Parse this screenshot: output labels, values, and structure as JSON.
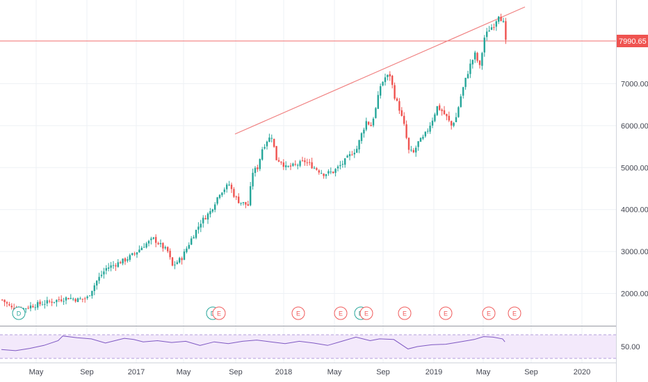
{
  "colors": {
    "up": "#26a69a",
    "down": "#ef5350",
    "hline": "#f26d6d",
    "trend": "#f08080",
    "rsi": "#7e57c2",
    "rsi_band": "#f3e9fb",
    "grid": "#eef1f5",
    "div_e": "#f05a5a",
    "div_d": "#26a69a"
  },
  "price_axis": {
    "ticks": [
      "2000.00",
      "3000.00",
      "4000.00",
      "5000.00",
      "6000.00",
      "7000.00"
    ],
    "current_price": "7990.65"
  },
  "time_axis": {
    "labels": [
      "May",
      "Sep",
      "2017",
      "May",
      "Sep",
      "2018",
      "May",
      "Sep",
      "2019",
      "May",
      "Sep",
      "2020"
    ]
  },
  "rsi": {
    "level_label": "50.00"
  },
  "events": [
    {
      "type": "D"
    },
    {
      "type": "D"
    },
    {
      "type": "E"
    },
    {
      "type": "E"
    },
    {
      "type": "E"
    },
    {
      "type": "D"
    },
    {
      "type": "E"
    },
    {
      "type": "E"
    },
    {
      "type": "E"
    },
    {
      "type": "E"
    },
    {
      "type": "E"
    }
  ],
  "chart_data": {
    "type": "candlestick",
    "price_range": [
      1200,
      8800
    ],
    "horizontal_line": 7990,
    "trendline": [
      {
        "date": "2017-09",
        "price": 5800
      },
      {
        "date": "2019-07",
        "price": 8750
      }
    ],
    "close_path": [
      [
        0,
        1850
      ],
      [
        4,
        1650
      ],
      [
        8,
        1620
      ],
      [
        12,
        1700
      ],
      [
        16,
        1750
      ],
      [
        20,
        1800
      ],
      [
        24,
        1850
      ],
      [
        28,
        1900
      ],
      [
        32,
        1850
      ],
      [
        36,
        1900
      ],
      [
        40,
        2300
      ],
      [
        44,
        2600
      ],
      [
        48,
        2700
      ],
      [
        52,
        2800
      ],
      [
        56,
        2950
      ],
      [
        60,
        3150
      ],
      [
        64,
        3300
      ],
      [
        66,
        3200
      ],
      [
        70,
        3000
      ],
      [
        72,
        2650
      ],
      [
        76,
        2850
      ],
      [
        80,
        3300
      ],
      [
        84,
        3700
      ],
      [
        88,
        3950
      ],
      [
        92,
        4400
      ],
      [
        96,
        4600
      ],
      [
        98,
        4350
      ],
      [
        100,
        4200
      ],
      [
        104,
        4100
      ],
      [
        106,
        4900
      ],
      [
        108,
        5000
      ],
      [
        110,
        5450
      ],
      [
        112,
        5650
      ],
      [
        114,
        5750
      ],
      [
        116,
        5200
      ],
      [
        118,
        5150
      ],
      [
        120,
        5000
      ],
      [
        124,
        5050
      ],
      [
        128,
        5150
      ],
      [
        132,
        5000
      ],
      [
        136,
        4850
      ],
      [
        140,
        4900
      ],
      [
        144,
        5100
      ],
      [
        148,
        5350
      ],
      [
        150,
        5450
      ],
      [
        152,
        5800
      ],
      [
        154,
        6100
      ],
      [
        156,
        6000
      ],
      [
        158,
        6400
      ],
      [
        160,
        6950
      ],
      [
        162,
        7150
      ],
      [
        164,
        7200
      ],
      [
        166,
        6700
      ],
      [
        168,
        6400
      ],
      [
        170,
        6000
      ],
      [
        172,
        5400
      ],
      [
        174,
        5350
      ],
      [
        176,
        5600
      ],
      [
        178,
        5700
      ],
      [
        180,
        5900
      ],
      [
        182,
        6150
      ],
      [
        184,
        6450
      ],
      [
        186,
        6350
      ],
      [
        188,
        6200
      ],
      [
        190,
        6000
      ],
      [
        192,
        6200
      ],
      [
        194,
        6700
      ],
      [
        196,
        7100
      ],
      [
        198,
        7450
      ],
      [
        200,
        7700
      ],
      [
        202,
        7400
      ],
      [
        204,
        8100
      ],
      [
        206,
        8300
      ],
      [
        208,
        8400
      ],
      [
        210,
        8650
      ],
      [
        212,
        8450
      ],
      [
        213,
        7990
      ]
    ],
    "rsi_path": [
      [
        0,
        45
      ],
      [
        6,
        43
      ],
      [
        12,
        47
      ],
      [
        18,
        52
      ],
      [
        24,
        60
      ],
      [
        26,
        68
      ],
      [
        32,
        65
      ],
      [
        38,
        63
      ],
      [
        44,
        56
      ],
      [
        48,
        60
      ],
      [
        52,
        64
      ],
      [
        56,
        62
      ],
      [
        60,
        58
      ],
      [
        66,
        60
      ],
      [
        72,
        57
      ],
      [
        78,
        59
      ],
      [
        84,
        52
      ],
      [
        90,
        58
      ],
      [
        96,
        55
      ],
      [
        102,
        59
      ],
      [
        108,
        61
      ],
      [
        114,
        58
      ],
      [
        120,
        55
      ],
      [
        126,
        59
      ],
      [
        132,
        56
      ],
      [
        138,
        52
      ],
      [
        144,
        59
      ],
      [
        150,
        66
      ],
      [
        156,
        60
      ],
      [
        160,
        63
      ],
      [
        166,
        62
      ],
      [
        172,
        46
      ],
      [
        176,
        50
      ],
      [
        182,
        53
      ],
      [
        188,
        54
      ],
      [
        194,
        58
      ],
      [
        200,
        62
      ],
      [
        204,
        67
      ],
      [
        208,
        66
      ],
      [
        212,
        63
      ],
      [
        213,
        58
      ]
    ]
  }
}
